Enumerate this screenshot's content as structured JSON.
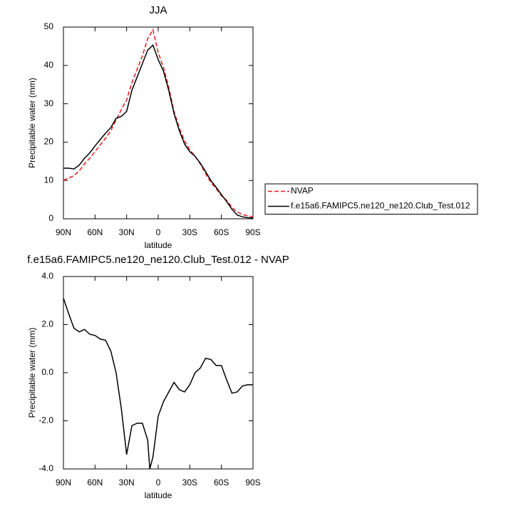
{
  "chart_data": [
    {
      "type": "line",
      "title": "JJA",
      "xlabel": "latitude",
      "ylabel": "Precipitable water (mm)",
      "x": [
        90,
        85,
        80,
        75,
        70,
        65,
        60,
        55,
        50,
        45,
        40,
        35,
        30,
        25,
        20,
        15,
        10,
        5,
        0,
        -5,
        -10,
        -15,
        -20,
        -25,
        -30,
        -35,
        -40,
        -45,
        -50,
        -55,
        -60,
        -65,
        -70,
        -75,
        -80,
        -85,
        -90
      ],
      "series": [
        {
          "name": "NVAP",
          "color": "#e8191e",
          "line_style": "dashed",
          "values": [
            10,
            10.7,
            11.2,
            12.5,
            14.3,
            15.8,
            17.5,
            19.3,
            21,
            23,
            25.7,
            28.5,
            31,
            35.5,
            39,
            42.5,
            47,
            49.3,
            43.3,
            39.5,
            34.3,
            28,
            23.7,
            20.3,
            18,
            16.3,
            14.3,
            11.7,
            9.5,
            7.9,
            6,
            4.8,
            3,
            1.8,
            1.1,
            0.8,
            0.5
          ]
        },
        {
          "name": "f.e15a6.FAMIPC5.ne120_ne120.Club_Test.012",
          "color": "#000000",
          "line_style": "solid",
          "values": [
            13.2,
            13.2,
            13,
            14,
            15.8,
            17.2,
            19,
            20.7,
            22.3,
            23.8,
            26.2,
            26.7,
            28,
            33.5,
            37,
            40.5,
            44,
            45.3,
            41.5,
            38.5,
            33.5,
            27.5,
            23,
            19.5,
            17.5,
            16.3,
            14.5,
            12.3,
            10,
            8.2,
            6.3,
            4.5,
            2.5,
            1,
            0.5,
            0.3,
            0.2
          ]
        }
      ],
      "xlim": [
        90,
        -90
      ],
      "xticks": [
        {
          "value": 90,
          "label": "90N"
        },
        {
          "value": 60,
          "label": "60N"
        },
        {
          "value": 30,
          "label": "30N"
        },
        0,
        {
          "value": -30,
          "label": "30S"
        },
        {
          "value": -60,
          "label": "60S"
        },
        {
          "value": -90,
          "label": "90S"
        }
      ],
      "ylim": [
        0,
        50
      ],
      "yticks": [
        0,
        10,
        20,
        30,
        40,
        50
      ],
      "legend": "right"
    },
    {
      "type": "line",
      "title": "f.e15a6.FAMIPC5.ne120_ne120.Club_Test.012 - NVAP",
      "xlabel": "latitude",
      "ylabel": "Precipitable water (mm)",
      "x": [
        90,
        85,
        80,
        75,
        70,
        65,
        60,
        55,
        50,
        45,
        40,
        35,
        30,
        25,
        20,
        15,
        10,
        8,
        5,
        0,
        -5,
        -10,
        -15,
        -20,
        -25,
        -30,
        -35,
        -40,
        -45,
        -50,
        -55,
        -60,
        -65,
        -70,
        -75,
        -80,
        -85,
        -90
      ],
      "values": [
        3.1,
        2.45,
        1.85,
        1.7,
        1.8,
        1.6,
        1.55,
        1.4,
        1.35,
        0.9,
        0,
        -1.5,
        -3.4,
        -2.2,
        -2.1,
        -2.1,
        -2.8,
        -4,
        -3.5,
        -1.8,
        -1.2,
        -0.8,
        -0.4,
        -0.7,
        -0.8,
        -0.5,
        0,
        0.2,
        0.6,
        0.55,
        0.3,
        0.3,
        -0.3,
        -0.85,
        -0.8,
        -0.55,
        -0.5,
        -0.5
      ],
      "color": "#000000",
      "xlim": [
        90,
        -90
      ],
      "xticks": [
        {
          "value": 90,
          "label": "90N"
        },
        {
          "value": 60,
          "label": "60N"
        },
        {
          "value": 30,
          "label": "30N"
        },
        0,
        {
          "value": -30,
          "label": "30S"
        },
        {
          "value": -60,
          "label": "60S"
        },
        {
          "value": -90,
          "label": "90S"
        }
      ],
      "ylim": [
        -4,
        4
      ],
      "yticks": [
        {
          "value": -4,
          "label": "-4.0"
        },
        {
          "value": -2,
          "label": "-2.0"
        },
        {
          "value": 0,
          "label": "0.0"
        },
        {
          "value": 2,
          "label": "2.0"
        },
        {
          "value": 4,
          "label": "4.0"
        }
      ]
    }
  ]
}
